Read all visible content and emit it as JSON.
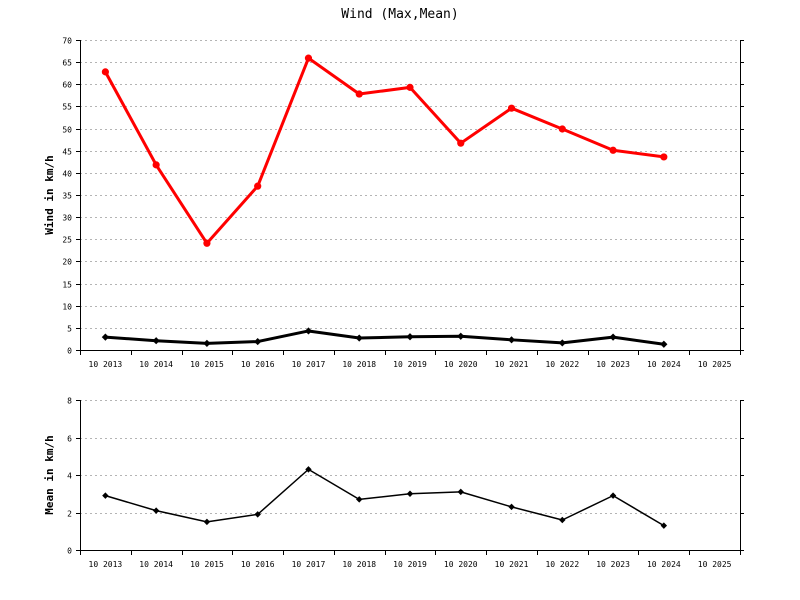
{
  "chart_data": [
    {
      "type": "line",
      "title": "Wind (Max,Mean)",
      "xlabel": "",
      "ylabel": "Wind in km/h",
      "ylim": [
        0,
        70
      ],
      "yticks": [
        0,
        5,
        10,
        15,
        20,
        25,
        30,
        35,
        40,
        45,
        50,
        55,
        60,
        65,
        70
      ],
      "grid": true,
      "categories": [
        "10 2013",
        "10 2014",
        "10 2015",
        "10 2016",
        "10 2017",
        "10 2018",
        "10 2019",
        "10 2020",
        "10 2021",
        "10 2022",
        "10 2023",
        "10 2024",
        "10 2025"
      ],
      "series": [
        {
          "values": [
            62.8,
            41.8,
            24.1,
            37.0,
            65.9,
            57.8,
            59.3,
            46.7,
            54.6,
            49.9,
            45.1,
            43.6,
            null
          ],
          "color": "#ff0000",
          "marker": "circle"
        },
        {
          "values": [
            2.9,
            2.1,
            1.5,
            1.9,
            4.3,
            2.7,
            3.0,
            3.1,
            2.3,
            1.6,
            2.9,
            1.3,
            null
          ],
          "color": "#000000",
          "marker": "diamond"
        }
      ]
    },
    {
      "type": "line",
      "title": "",
      "xlabel": "",
      "ylabel": "Mean in km/h",
      "ylim": [
        0,
        8
      ],
      "yticks": [
        0,
        2,
        4,
        6,
        8
      ],
      "grid": true,
      "categories": [
        "10 2013",
        "10 2014",
        "10 2015",
        "10 2016",
        "10 2017",
        "10 2018",
        "10 2019",
        "10 2020",
        "10 2021",
        "10 2022",
        "10 2023",
        "10 2024",
        "10 2025"
      ],
      "series": [
        {
          "values": [
            2.9,
            2.1,
            1.5,
            1.9,
            4.3,
            2.7,
            3.0,
            3.1,
            2.3,
            1.6,
            2.9,
            1.3,
            null
          ],
          "color": "#000000",
          "marker": "diamond"
        }
      ]
    }
  ]
}
